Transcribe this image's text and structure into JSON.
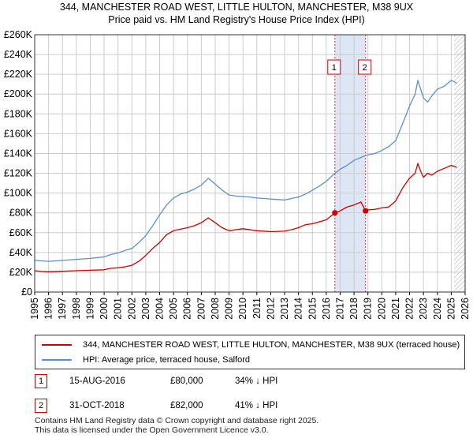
{
  "header": {
    "title_line1": "344, MANCHESTER ROAD WEST, LITTLE HULTON, MANCHESTER, M38 9UX",
    "title_line2": "Price paid vs. HM Land Registry's House Price Index (HPI)"
  },
  "legend": {
    "items": [
      {
        "label": "344, MANCHESTER ROAD WEST, LITTLE HULTON, MANCHESTER, M38 9UX (terraced house)",
        "color": "#cc0000"
      },
      {
        "label": "HPI: Average price, terraced house, Salford",
        "color": "#5b8fd0"
      }
    ]
  },
  "sales": [
    {
      "num": "1",
      "date": "15-AUG-2016",
      "price": "£80,000",
      "hpi_diff": "34% ↓ HPI"
    },
    {
      "num": "2",
      "date": "31-OCT-2018",
      "price": "£82,000",
      "hpi_diff": "41% ↓ HPI"
    }
  ],
  "footer": {
    "line1": "Contains HM Land Registry data © Crown copyright and database right 2025.",
    "line2": "This data is licensed under the Open Government Licence v3.0."
  },
  "chart_data": {
    "type": "line",
    "title": "344, MANCHESTER ROAD WEST, LITTLE HULTON, MANCHESTER, M38 9UX",
    "subtitle": "Price paid vs. HM Land Registry's House Price Index (HPI)",
    "xlabel": "",
    "ylabel": "",
    "xlim": [
      1995,
      2026
    ],
    "ylim": [
      0,
      260000
    ],
    "grid": true,
    "y_ticks": [
      {
        "value": 0,
        "label": "£0"
      },
      {
        "value": 20000,
        "label": "£20K"
      },
      {
        "value": 40000,
        "label": "£40K"
      },
      {
        "value": 60000,
        "label": "£60K"
      },
      {
        "value": 80000,
        "label": "£80K"
      },
      {
        "value": 100000,
        "label": "£100K"
      },
      {
        "value": 120000,
        "label": "£120K"
      },
      {
        "value": 140000,
        "label": "£140K"
      },
      {
        "value": 160000,
        "label": "£160K"
      },
      {
        "value": 180000,
        "label": "£180K"
      },
      {
        "value": 200000,
        "label": "£200K"
      },
      {
        "value": 220000,
        "label": "£220K"
      },
      {
        "value": 240000,
        "label": "£240K"
      },
      {
        "value": 260000,
        "label": "£260K"
      }
    ],
    "x_ticks": [
      "1995",
      "1996",
      "1997",
      "1998",
      "1999",
      "2000",
      "2001",
      "2002",
      "2003",
      "2004",
      "2005",
      "2006",
      "2007",
      "2008",
      "2009",
      "2010",
      "2011",
      "2012",
      "2013",
      "2014",
      "2015",
      "2016",
      "2017",
      "2018",
      "2019",
      "2020",
      "2021",
      "2022",
      "2023",
      "2024",
      "2025",
      "2026"
    ],
    "shaded_span": [
      2016.62,
      2018.83
    ],
    "hatch_from": 2025.2,
    "markers": [
      {
        "label": "1",
        "x": 2016.62,
        "y": 80000
      },
      {
        "label": "2",
        "x": 2018.83,
        "y": 82000
      }
    ],
    "series": [
      {
        "name": "344, MANCHESTER ROAD WEST, LITTLE HULTON, MANCHESTER, M38 9UX (terraced house)",
        "color": "#cc0000",
        "x": [
          1995,
          1995.5,
          1996,
          1997,
          1998,
          1999,
          2000,
          2000.5,
          2001,
          2001.5,
          2002,
          2002.5,
          2003,
          2003.5,
          2004,
          2004.5,
          2005,
          2006,
          2006.5,
          2007,
          2007.5,
          2008,
          2008.5,
          2009,
          2009.5,
          2010,
          2011,
          2012,
          2013,
          2013.5,
          2014,
          2014.5,
          2015,
          2015.5,
          2016,
          2016.62,
          2017,
          2017.5,
          2018,
          2018.5,
          2018.83,
          2019,
          2019.5,
          2020,
          2020.5,
          2021,
          2021.5,
          2022,
          2022.4,
          2022.6,
          2022.8,
          2023,
          2023.3,
          2023.6,
          2024,
          2024.5,
          2025,
          2025.4
        ],
        "values": [
          21500,
          20800,
          20500,
          21000,
          21500,
          22000,
          22500,
          24000,
          24500,
          25500,
          27000,
          31000,
          37000,
          44000,
          50000,
          58000,
          62000,
          65000,
          67000,
          70000,
          75000,
          70000,
          65000,
          62000,
          63000,
          64000,
          62000,
          61000,
          61500,
          63000,
          65000,
          68000,
          69000,
          71000,
          73000,
          80000,
          82000,
          86000,
          88000,
          91000,
          82000,
          83000,
          83500,
          85000,
          86000,
          92000,
          105000,
          115000,
          120000,
          130000,
          122000,
          116000,
          120000,
          118000,
          122000,
          125000,
          128000,
          126000
        ]
      },
      {
        "name": "HPI: Average price, terraced house, Salford",
        "color": "#5b8fd0",
        "x": [
          1995,
          1995.5,
          1996,
          1997,
          1998,
          1999,
          2000,
          2000.5,
          2001,
          2001.5,
          2002,
          2002.5,
          2003,
          2003.5,
          2004,
          2004.5,
          2005,
          2005.5,
          2006,
          2006.5,
          2007,
          2007.5,
          2008,
          2008.5,
          2009,
          2009.5,
          2010,
          2010.5,
          2011,
          2011.5,
          2012,
          2012.5,
          2013,
          2013.5,
          2014,
          2014.5,
          2015,
          2015.5,
          2016,
          2016.62,
          2017,
          2017.5,
          2018,
          2018.5,
          2018.83,
          2019,
          2019.5,
          2020,
          2020.5,
          2021,
          2021.5,
          2022,
          2022.4,
          2022.6,
          2022.8,
          2023,
          2023.3,
          2023.6,
          2024,
          2024.5,
          2025,
          2025.4
        ],
        "values": [
          32000,
          31500,
          31000,
          32000,
          33000,
          34000,
          35500,
          38000,
          39500,
          42000,
          44000,
          50000,
          57000,
          67000,
          78000,
          88000,
          95000,
          99000,
          101000,
          104000,
          108000,
          115000,
          109000,
          103000,
          98000,
          97000,
          96500,
          96000,
          95000,
          94500,
          94000,
          93500,
          93000,
          94500,
          96000,
          99000,
          103000,
          107000,
          112000,
          120000,
          124000,
          128000,
          133000,
          136000,
          138000,
          138500,
          140000,
          143000,
          147000,
          153000,
          170000,
          188000,
          200000,
          214000,
          205000,
          196000,
          192000,
          198000,
          205000,
          208000,
          214000,
          211000
        ]
      }
    ]
  }
}
